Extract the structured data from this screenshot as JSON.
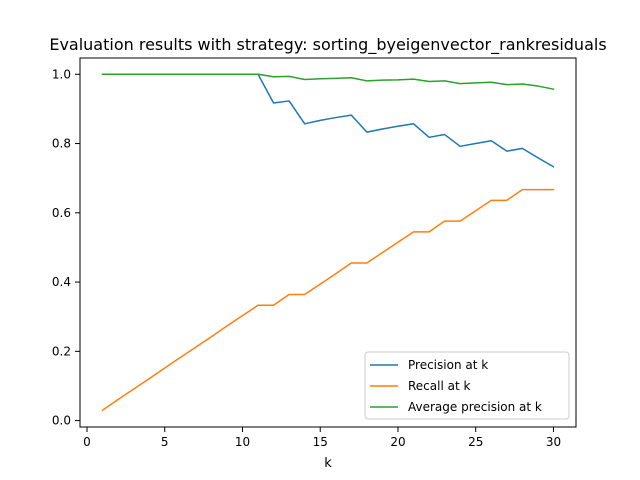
{
  "chart_data": {
    "type": "line",
    "title": "Evaluation results with strategy: sorting_byeigenvector_rankresiduals",
    "xlabel": "k",
    "ylabel": "",
    "xlim": [
      -0.45,
      31.45
    ],
    "ylim": [
      -0.0185,
      1.047
    ],
    "xticks": [
      0,
      5,
      10,
      15,
      20,
      25,
      30
    ],
    "yticks": [
      0.0,
      0.2,
      0.4,
      0.6,
      0.8,
      1.0
    ],
    "grid": false,
    "legend_position": "lower-right",
    "x": [
      1,
      2,
      3,
      4,
      5,
      6,
      7,
      8,
      9,
      10,
      11,
      12,
      13,
      14,
      15,
      16,
      17,
      18,
      19,
      20,
      21,
      22,
      23,
      24,
      25,
      26,
      27,
      28,
      29,
      30
    ],
    "series": [
      {
        "name": "Precision at k",
        "color": "#1f77b4",
        "values": [
          1.0,
          1.0,
          1.0,
          1.0,
          1.0,
          1.0,
          1.0,
          1.0,
          1.0,
          1.0,
          1.0,
          0.917,
          0.923,
          0.857,
          0.867,
          0.875,
          0.882,
          0.833,
          0.842,
          0.85,
          0.857,
          0.818,
          0.826,
          0.792,
          0.8,
          0.808,
          0.778,
          0.786,
          0.759,
          0.733
        ]
      },
      {
        "name": "Recall at k",
        "color": "#ff7f0e",
        "values": [
          0.03,
          0.061,
          0.091,
          0.121,
          0.152,
          0.182,
          0.212,
          0.242,
          0.273,
          0.303,
          0.333,
          0.333,
          0.364,
          0.364,
          0.394,
          0.424,
          0.455,
          0.455,
          0.485,
          0.515,
          0.545,
          0.545,
          0.576,
          0.576,
          0.606,
          0.636,
          0.636,
          0.667,
          0.667,
          0.667
        ]
      },
      {
        "name": "Average precision at k",
        "color": "#2ca02c",
        "values": [
          1.0,
          1.0,
          1.0,
          1.0,
          1.0,
          1.0,
          1.0,
          1.0,
          1.0,
          1.0,
          1.0,
          0.993,
          0.994,
          0.985,
          0.987,
          0.988,
          0.99,
          0.981,
          0.983,
          0.984,
          0.986,
          0.979,
          0.981,
          0.973,
          0.975,
          0.977,
          0.97,
          0.972,
          0.966,
          0.957
        ]
      }
    ]
  }
}
